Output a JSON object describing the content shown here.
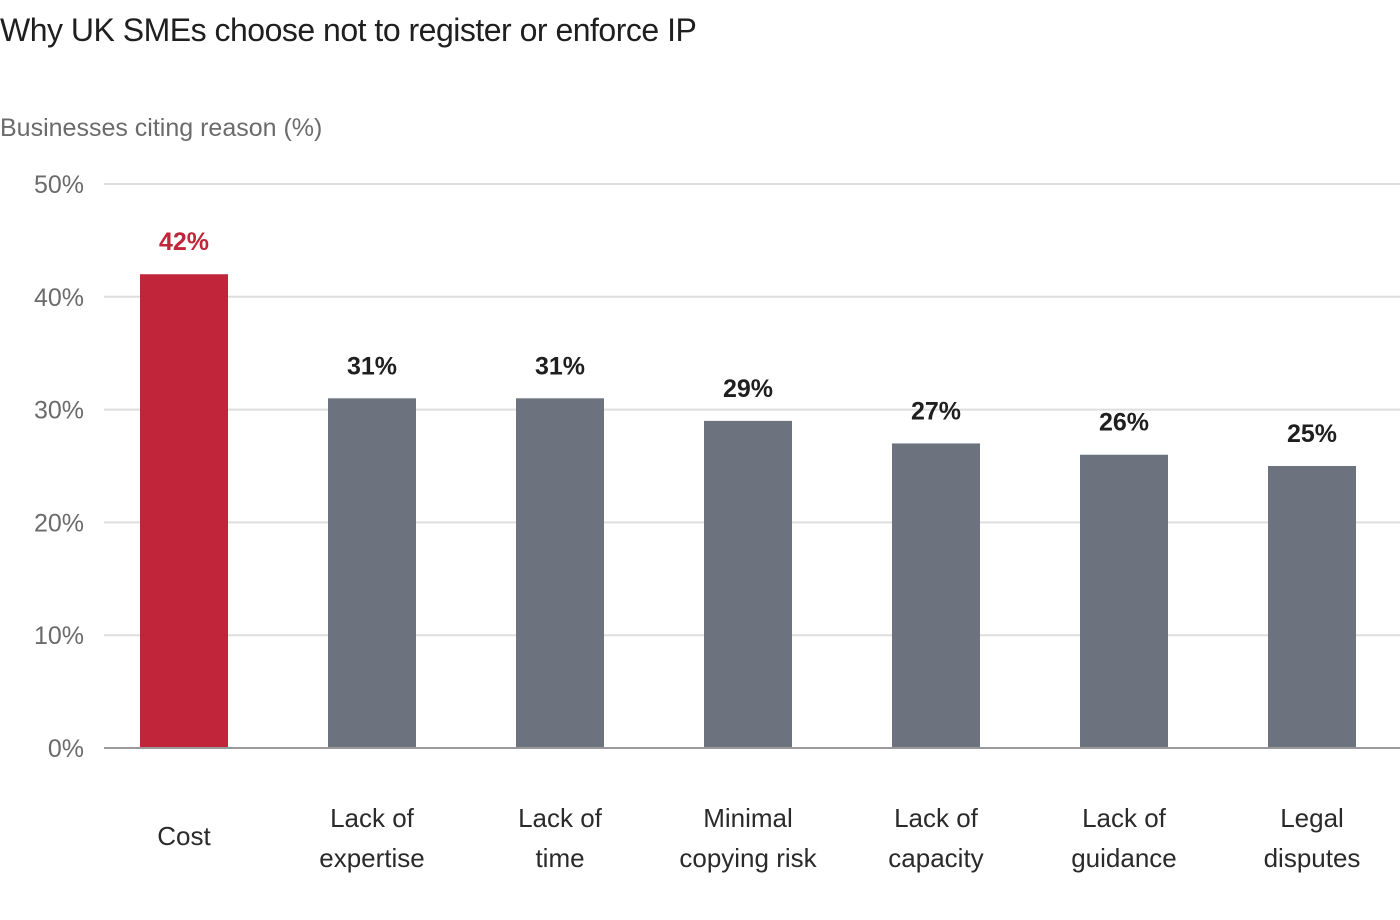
{
  "chart_data": {
    "type": "bar",
    "title": "Why UK SMEs choose not to register or enforce IP",
    "ylabel": "Businesses citing reason (%)",
    "xlabel": "",
    "ylim": [
      0,
      50
    ],
    "yticks": [
      0,
      10,
      20,
      30,
      40,
      50
    ],
    "ytick_labels": [
      "0%",
      "10%",
      "20%",
      "30%",
      "40%",
      "50%"
    ],
    "grid": true,
    "categories": [
      [
        "Cost"
      ],
      [
        "Lack of",
        "expertise"
      ],
      [
        "Lack of",
        "time"
      ],
      [
        "Minimal",
        "copying risk"
      ],
      [
        "Lack of",
        "capacity"
      ],
      [
        "Lack of",
        "guidance"
      ],
      [
        "Legal",
        "disputes"
      ]
    ],
    "values": [
      42,
      31,
      31,
      29,
      27,
      26,
      25
    ],
    "value_labels": [
      "42%",
      "31%",
      "31%",
      "29%",
      "27%",
      "26%",
      "25%"
    ],
    "highlight_index": 0,
    "colors": {
      "highlight": "#c0253a",
      "default": "#6c737e",
      "highlight_label": "#c0253a",
      "default_label": "#1f1f1f"
    }
  }
}
